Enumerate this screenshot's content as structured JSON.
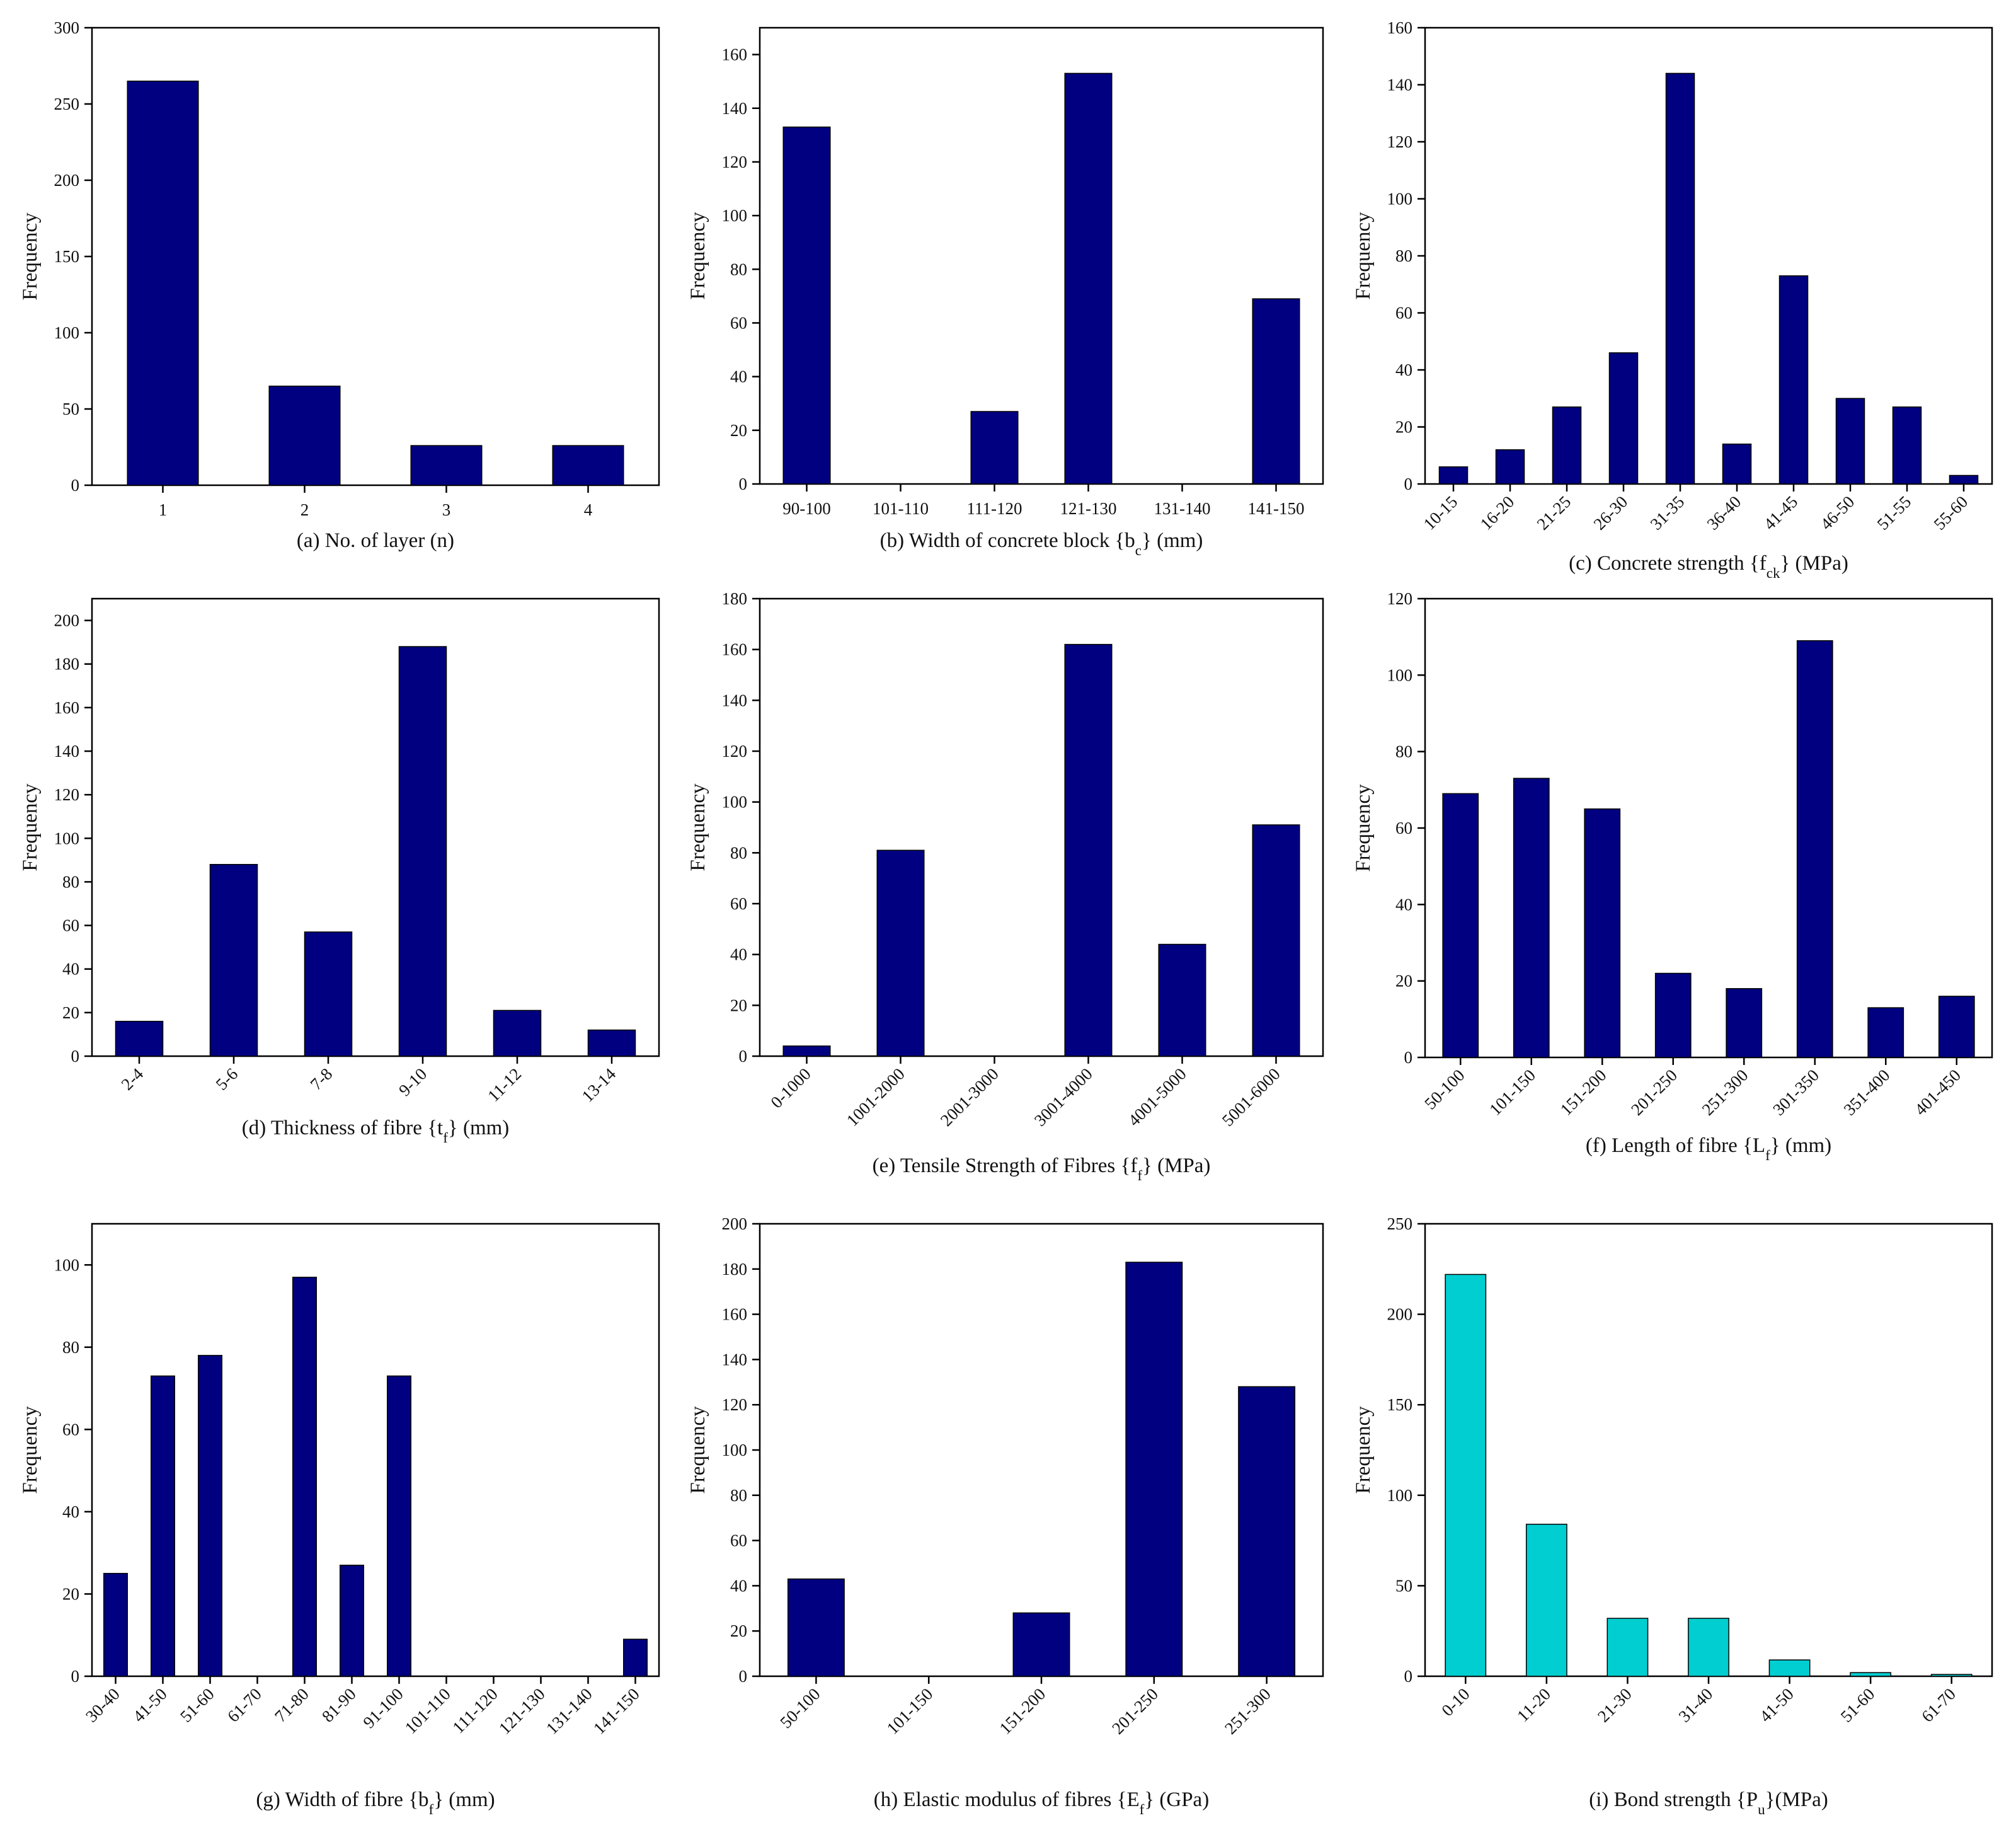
{
  "charts": [
    {
      "id": "a",
      "type": "bar",
      "caption": {
        "pre": "(a) No. of layer (n)",
        "sub": "",
        "post": ""
      },
      "ylabel": "Frequency",
      "ylim": [
        0,
        300
      ],
      "yticks": [
        0,
        50,
        100,
        150,
        200,
        250,
        300
      ],
      "categories": [
        "1",
        "2",
        "3",
        "4"
      ],
      "values": [
        265,
        65,
        26,
        26
      ],
      "rotate_x": false,
      "color": "#000080"
    },
    {
      "id": "b",
      "type": "bar",
      "caption": {
        "pre": "(b) Width of concrete block {b",
        "sub": "c",
        "post": "} (mm)"
      },
      "ylabel": "Frequency",
      "ylim": [
        0,
        170
      ],
      "yticks": [
        0,
        20,
        40,
        60,
        80,
        100,
        120,
        140,
        160
      ],
      "categories": [
        "90-100",
        "101-110",
        "111-120",
        "121-130",
        "131-140",
        "141-150"
      ],
      "values": [
        133,
        0,
        27,
        153,
        0,
        69
      ],
      "rotate_x": false,
      "color": "#000080"
    },
    {
      "id": "c",
      "type": "bar",
      "caption": {
        "pre": "(c) Concrete strength {f",
        "sub": "ck",
        "post": "} (MPa)"
      },
      "ylabel": "Frequency",
      "ylim": [
        0,
        160
      ],
      "yticks": [
        0,
        20,
        40,
        60,
        80,
        100,
        120,
        140,
        160
      ],
      "categories": [
        "10-15",
        "16-20",
        "21-25",
        "26-30",
        "31-35",
        "36-40",
        "41-45",
        "46-50",
        "51-55",
        "55-60"
      ],
      "values": [
        6,
        12,
        27,
        46,
        144,
        14,
        73,
        30,
        27,
        3
      ],
      "rotate_x": true,
      "color": "#000080"
    },
    {
      "id": "d",
      "type": "bar",
      "caption": {
        "pre": "(d) Thickness of fibre {t",
        "sub": "f",
        "post": "} (mm)"
      },
      "ylabel": "Frequency",
      "ylim": [
        0,
        210
      ],
      "yticks": [
        0,
        20,
        40,
        60,
        80,
        100,
        120,
        140,
        160,
        180,
        200
      ],
      "categories": [
        "2-4",
        "5-6",
        "7-8",
        "9-10",
        "11-12",
        "13-14"
      ],
      "values": [
        16,
        88,
        57,
        188,
        21,
        12
      ],
      "rotate_x": true,
      "color": "#000080"
    },
    {
      "id": "e",
      "type": "bar",
      "caption": {
        "pre": "(e) Tensile Strength of Fibres {f",
        "sub": "f",
        "post": "} (MPa)"
      },
      "ylabel": "Frequency",
      "ylim": [
        0,
        180
      ],
      "yticks": [
        0,
        20,
        40,
        60,
        80,
        100,
        120,
        140,
        160,
        180
      ],
      "categories": [
        "0-1000",
        "1001-2000",
        "2001-3000",
        "3001-4000",
        "4001-5000",
        "5001-6000"
      ],
      "values": [
        4,
        81,
        0,
        162,
        44,
        91
      ],
      "rotate_x": true,
      "color": "#000080"
    },
    {
      "id": "f",
      "type": "bar",
      "caption": {
        "pre": "(f) Length of fibre {L",
        "sub": "f",
        "post": "} (mm)"
      },
      "ylabel": "Frequency",
      "ylim": [
        0,
        120
      ],
      "yticks": [
        0,
        20,
        40,
        60,
        80,
        100,
        120
      ],
      "categories": [
        "50-100",
        "101-150",
        "151-200",
        "201-250",
        "251-300",
        "301-350",
        "351-400",
        "401-450"
      ],
      "values": [
        69,
        73,
        65,
        22,
        18,
        109,
        13,
        16
      ],
      "rotate_x": true,
      "color": "#000080"
    },
    {
      "id": "g",
      "type": "bar",
      "caption": {
        "pre": "(g) Width of fibre {b",
        "sub": "f",
        "post": "} (mm)"
      },
      "ylabel": "Frequency",
      "ylim": [
        0,
        110
      ],
      "yticks": [
        0,
        20,
        40,
        60,
        80,
        100
      ],
      "categories": [
        "30-40",
        "41-50",
        "51-60",
        "61-70",
        "71-80",
        "81-90",
        "91-100",
        "101-110",
        "111-120",
        "121-130",
        "131-140",
        "141-150"
      ],
      "values": [
        25,
        73,
        78,
        0,
        97,
        27,
        73,
        0,
        0,
        0,
        0,
        9
      ],
      "rotate_x": true,
      "color": "#000080"
    },
    {
      "id": "h",
      "type": "bar",
      "caption": {
        "pre": "(h) Elastic modulus of fibres {E",
        "sub": "f",
        "post": "} (GPa)"
      },
      "ylabel": "Frequency",
      "ylim": [
        0,
        200
      ],
      "yticks": [
        0,
        20,
        40,
        60,
        80,
        100,
        120,
        140,
        160,
        180,
        200
      ],
      "categories": [
        "50-100",
        "101-150",
        "151-200",
        "201-250",
        "251-300"
      ],
      "values": [
        43,
        0,
        28,
        183,
        128
      ],
      "rotate_x": true,
      "color": "#000080"
    },
    {
      "id": "i",
      "type": "bar",
      "caption": {
        "pre": "(i) Bond strength {P",
        "sub": "u",
        "post": "}(MPa)"
      },
      "ylabel": "Frequency",
      "ylim": [
        0,
        250
      ],
      "yticks": [
        0,
        50,
        100,
        150,
        200,
        250
      ],
      "categories": [
        "0-10",
        "11-20",
        "21-30",
        "31-40",
        "41-50",
        "51-60",
        "61-70"
      ],
      "values": [
        222,
        84,
        32,
        32,
        9,
        2,
        1
      ],
      "rotate_x": true,
      "color": "#00CED1"
    }
  ]
}
